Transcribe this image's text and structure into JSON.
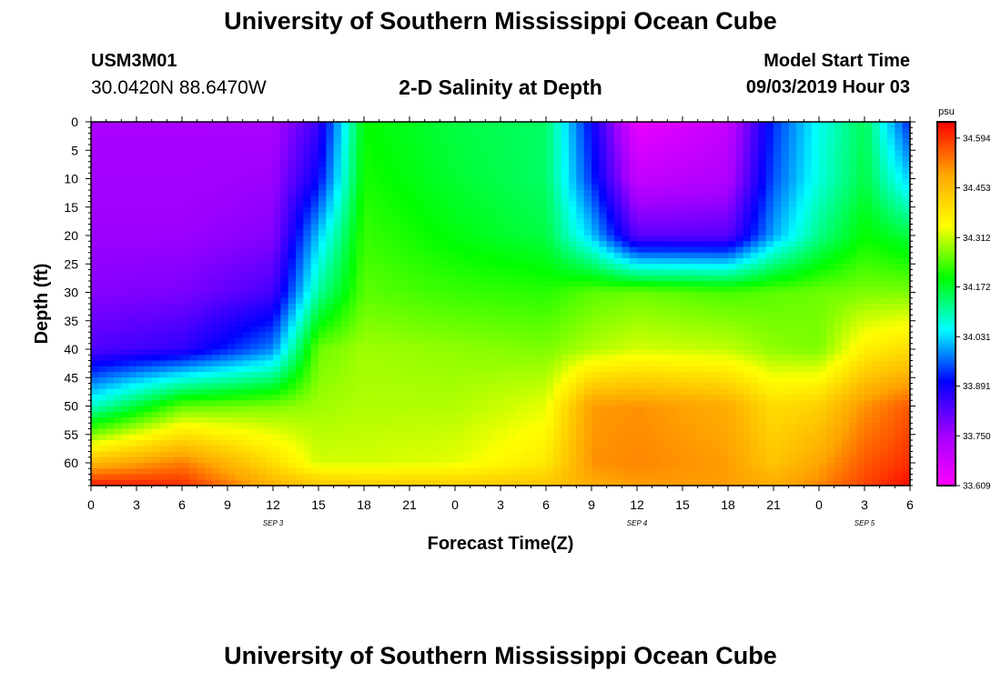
{
  "header": {
    "title_top": "University of Southern Mississippi Ocean Cube",
    "station_id": "USM3M01",
    "station_coords": "30.0420N 88.6470W",
    "plot_title": "2-D Salinity at Depth",
    "model_start_label": "Model Start Time",
    "model_start_value": "09/03/2019 Hour 03"
  },
  "footer": {
    "title_bottom": "University of Southern Mississippi Ocean Cube"
  },
  "chart_data": {
    "type": "heatmap",
    "xlabel": "Forecast Time(Z)",
    "ylabel": "Depth (ft)",
    "x_ticks": [
      "0",
      "3",
      "6",
      "9",
      "12",
      "15",
      "18",
      "21",
      "0",
      "3",
      "6",
      "9",
      "12",
      "15",
      "18",
      "21",
      "0",
      "3",
      "6"
    ],
    "x_tick_hours": [
      0,
      3,
      6,
      9,
      12,
      15,
      18,
      21,
      24,
      27,
      30,
      33,
      36,
      39,
      42,
      45,
      48,
      51,
      54
    ],
    "date_labels": [
      {
        "label": "SEP 3",
        "hour": 12
      },
      {
        "label": "SEP 4",
        "hour": 36
      },
      {
        "label": "SEP 5",
        "hour": 51
      }
    ],
    "y_ticks": [
      0,
      5,
      10,
      15,
      20,
      25,
      30,
      35,
      40,
      45,
      50,
      55,
      60
    ],
    "xlim": [
      0,
      54
    ],
    "ylim": [
      0,
      64
    ],
    "colorbar": {
      "unit": "psu",
      "tick_values": [
        "34.594",
        "34.453",
        "34.312",
        "34.172",
        "34.031",
        "33.891",
        "33.750",
        "33.609"
      ],
      "range": [
        33.609,
        34.64
      ],
      "colors": [
        "#ff00ff",
        "#a000ff",
        "#0000ff",
        "#00ffff",
        "#00ff00",
        "#ffff00",
        "#ffa500",
        "#ff0000"
      ]
    },
    "grid_hours": [
      0,
      6,
      12,
      15,
      18,
      24,
      30,
      33,
      36,
      42,
      45,
      48,
      51,
      54
    ],
    "grid_depths": [
      0,
      10,
      20,
      30,
      40,
      50,
      60,
      64
    ],
    "salinity": [
      [
        33.74,
        33.74,
        33.74,
        33.85,
        34.2,
        34.16,
        34.14,
        33.9,
        33.64,
        33.7,
        33.93,
        34.06,
        34.15,
        33.92
      ],
      [
        33.75,
        33.75,
        33.76,
        33.9,
        34.21,
        34.17,
        34.14,
        33.93,
        33.7,
        33.73,
        33.95,
        34.07,
        34.16,
        34.02
      ],
      [
        33.76,
        33.76,
        33.78,
        34.02,
        34.23,
        34.19,
        34.16,
        34.02,
        33.82,
        33.82,
        34.0,
        34.12,
        34.2,
        34.16
      ],
      [
        33.78,
        33.79,
        33.84,
        34.11,
        34.25,
        34.23,
        34.22,
        34.25,
        34.26,
        34.24,
        34.25,
        34.26,
        34.27,
        34.27
      ],
      [
        33.83,
        33.86,
        33.98,
        34.26,
        34.29,
        34.28,
        34.27,
        34.3,
        34.32,
        34.31,
        34.28,
        34.27,
        34.37,
        34.4
      ],
      [
        34.08,
        34.25,
        34.27,
        34.29,
        34.3,
        34.3,
        34.33,
        34.5,
        34.51,
        34.48,
        34.4,
        34.42,
        34.51,
        34.56
      ],
      [
        34.46,
        34.53,
        34.4,
        34.32,
        34.32,
        34.33,
        34.38,
        34.51,
        34.52,
        34.5,
        34.44,
        34.49,
        34.56,
        34.6
      ],
      [
        34.62,
        34.6,
        34.47,
        34.44,
        34.43,
        34.43,
        34.44,
        34.48,
        34.5,
        34.5,
        34.48,
        34.52,
        34.58,
        34.63
      ]
    ]
  }
}
